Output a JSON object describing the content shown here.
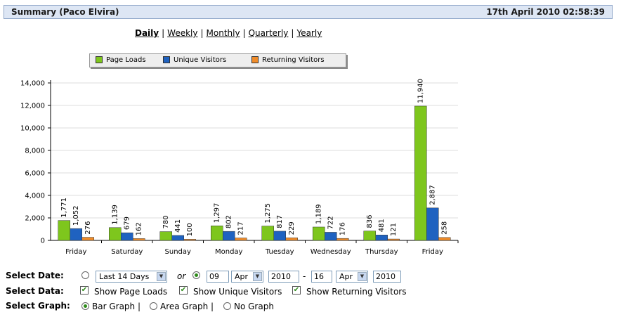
{
  "header": {
    "title": "Summary (Paco Elvira)",
    "datetime": "17th April 2010 02:58:39"
  },
  "periods": [
    {
      "label": "Daily",
      "active": true
    },
    {
      "label": "Weekly",
      "active": false
    },
    {
      "label": "Monthly",
      "active": false
    },
    {
      "label": "Quarterly",
      "active": false
    },
    {
      "label": "Yearly",
      "active": false
    }
  ],
  "legend": [
    {
      "label": "Page Loads",
      "color": "#7ec61d"
    },
    {
      "label": "Unique Visitors",
      "color": "#1f62c0"
    },
    {
      "label": "Returning Visitors",
      "color": "#f08c2a"
    }
  ],
  "chart_data": {
    "type": "bar",
    "categories": [
      "Friday",
      "Saturday",
      "Sunday",
      "Monday",
      "Tuesday",
      "Wednesday",
      "Thursday",
      "Friday"
    ],
    "series": [
      {
        "name": "Page Loads",
        "color": "#7ec61d",
        "values": [
          1771,
          1139,
          780,
          1297,
          1275,
          1189,
          836,
          11940
        ]
      },
      {
        "name": "Unique Visitors",
        "color": "#1f62c0",
        "values": [
          1052,
          679,
          441,
          802,
          817,
          722,
          481,
          2887
        ]
      },
      {
        "name": "Returning Visitors",
        "color": "#f08c2a",
        "values": [
          276,
          162,
          100,
          217,
          229,
          176,
          121,
          258
        ]
      }
    ],
    "yticks": [
      "0",
      "2,000",
      "4,000",
      "6,000",
      "8,000",
      "10,000",
      "12,000",
      "14,000"
    ],
    "ylim": [
      0,
      14000
    ],
    "grid": true
  },
  "controls": {
    "select_date": {
      "label": "Select Date:",
      "range_value": "Last 14 Days",
      "or_text": "or",
      "from_day": "09",
      "from_month": "Apr",
      "from_year": "2010",
      "dash": "-",
      "to_day": "16",
      "to_month": "Apr",
      "to_year": "2010",
      "custom_selected": true
    },
    "select_data": {
      "label": "Select Data:",
      "options": [
        "Show Page Loads",
        "Show Unique Visitors",
        "Show Returning Visitors"
      ]
    },
    "select_graph": {
      "label": "Select Graph:",
      "options": [
        "Bar Graph |",
        "Area Graph |",
        "No Graph"
      ],
      "selected": 0
    }
  }
}
